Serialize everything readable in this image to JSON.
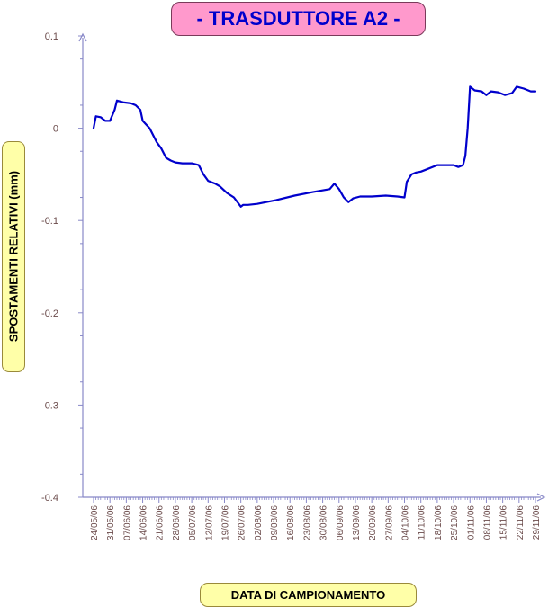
{
  "chart_data": {
    "type": "line",
    "title": "- TRASDUTTORE A2 -",
    "xlabel": "DATA DI CAMPIONAMENTO",
    "ylabel": "SPOSTAMENTI RELATIVI (mm)",
    "ylim": [
      -0.4,
      0.1
    ],
    "yticks": [
      "0.1",
      "0",
      "-0.1",
      "-0.2",
      "-0.3",
      "-0.4"
    ],
    "xlim": [
      "2006-05-24",
      "2006-11-29"
    ],
    "xticks": [
      "24/05/06",
      "31/05/06",
      "07/06/06",
      "14/06/06",
      "21/06/06",
      "28/06/06",
      "05/07/06",
      "12/07/06",
      "19/07/06",
      "26/07/06",
      "02/08/06",
      "09/08/06",
      "16/08/06",
      "23/08/06",
      "30/08/06",
      "06/09/06",
      "13/09/06",
      "20/09/06",
      "27/09/06",
      "04/10/06",
      "11/10/06",
      "18/10/06",
      "25/10/06",
      "01/11/06",
      "08/11/06",
      "15/11/06",
      "22/11/06",
      "29/11/06"
    ],
    "grid": false,
    "legend": "none",
    "series": [
      {
        "color": "#0000cc",
        "x": [
          "2006-05-24",
          "2006-05-25",
          "2006-05-27",
          "2006-05-29",
          "2006-05-31",
          "2006-06-02",
          "2006-06-03",
          "2006-06-06",
          "2006-06-09",
          "2006-06-11",
          "2006-06-13",
          "2006-06-14",
          "2006-06-17",
          "2006-06-20",
          "2006-06-22",
          "2006-06-24",
          "2006-06-26",
          "2006-06-28",
          "2006-07-01",
          "2006-07-05",
          "2006-07-08",
          "2006-07-10",
          "2006-07-12",
          "2006-07-15",
          "2006-07-17",
          "2006-07-20",
          "2006-07-23",
          "2006-07-26",
          "2006-07-27",
          "2006-07-29",
          "2006-08-02",
          "2006-08-10",
          "2006-08-18",
          "2006-08-26",
          "2006-09-02",
          "2006-09-04",
          "2006-09-06",
          "2006-09-08",
          "2006-09-10",
          "2006-09-12",
          "2006-09-15",
          "2006-09-20",
          "2006-09-26",
          "2006-10-01",
          "2006-10-04",
          "2006-10-05",
          "2006-10-07",
          "2006-10-09",
          "2006-10-11",
          "2006-10-13",
          "2006-10-18",
          "2006-10-25",
          "2006-10-27",
          "2006-10-29",
          "2006-10-30",
          "2006-10-31",
          "2006-11-01",
          "2006-11-03",
          "2006-11-06",
          "2006-11-08",
          "2006-11-10",
          "2006-11-13",
          "2006-11-16",
          "2006-11-19",
          "2006-11-21",
          "2006-11-24",
          "2006-11-27",
          "2006-11-29"
        ],
        "y": [
          0.0,
          0.013,
          0.012,
          0.008,
          0.008,
          0.02,
          0.03,
          0.028,
          0.027,
          0.025,
          0.02,
          0.008,
          0.0,
          -0.015,
          -0.022,
          -0.032,
          -0.035,
          -0.037,
          -0.038,
          -0.038,
          -0.04,
          -0.05,
          -0.057,
          -0.06,
          -0.063,
          -0.07,
          -0.075,
          -0.085,
          -0.083,
          -0.083,
          -0.082,
          -0.078,
          -0.073,
          -0.069,
          -0.066,
          -0.06,
          -0.066,
          -0.075,
          -0.08,
          -0.076,
          -0.074,
          -0.074,
          -0.073,
          -0.074,
          -0.075,
          -0.058,
          -0.05,
          -0.048,
          -0.047,
          -0.045,
          -0.04,
          -0.04,
          -0.042,
          -0.04,
          -0.03,
          0.0,
          0.045,
          0.041,
          0.04,
          0.036,
          0.04,
          0.039,
          0.036,
          0.038,
          0.045,
          0.043,
          0.04,
          0.04
        ]
      }
    ]
  }
}
